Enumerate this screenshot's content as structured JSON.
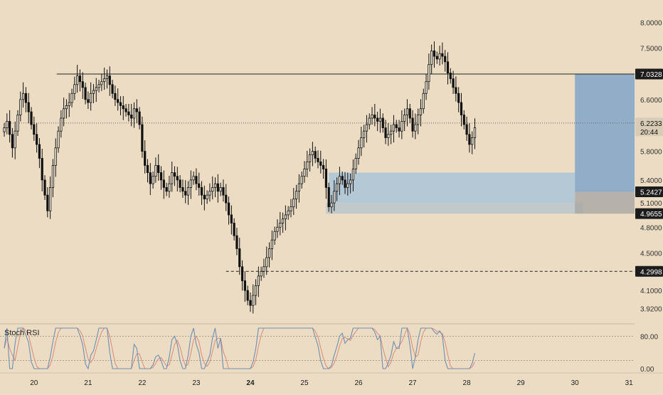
{
  "chart_data": {
    "type": "candlestick",
    "price_axis": {
      "ticks": [
        "8.0000",
        "7.5000",
        "6.6000",
        "5.8000",
        "5.4000",
        "5.1000",
        "4.8000",
        "4.5000",
        "4.1000",
        "3.9200"
      ],
      "tick_values": [
        8.0,
        7.5,
        6.6,
        5.8,
        5.4,
        5.1,
        4.8,
        4.5,
        4.1,
        3.92
      ],
      "scale": "log",
      "range": [
        3.82,
        8.25
      ]
    },
    "price_labels": [
      {
        "text": "7.0328",
        "value": 7.0328,
        "style": "dark"
      },
      {
        "text": "6.2233",
        "sub": "20:44",
        "value": 6.2233,
        "style": "last"
      },
      {
        "text": "5.2427",
        "value": 5.2427,
        "style": "dark"
      },
      {
        "text": "4.9655",
        "value": 4.9655,
        "style": "dark"
      },
      {
        "text": "4.2998",
        "value": 4.2998,
        "style": "dark"
      }
    ],
    "time_axis": {
      "labels": [
        "20",
        "21",
        "22",
        "23",
        "24",
        "25",
        "26",
        "27",
        "28",
        "29",
        "30",
        "31"
      ],
      "bold": [
        "24"
      ],
      "range": [
        19.45,
        31.05
      ]
    },
    "horizontal_lines": [
      {
        "value": 7.0328,
        "start": 20.42,
        "style": "solid"
      },
      {
        "value": 6.2233,
        "start": 19.45,
        "style": "dotted"
      },
      {
        "value": 4.2998,
        "start": 23.55,
        "style": "dashed"
      }
    ],
    "zones": [
      {
        "from": 25.45,
        "to": 30.0,
        "low": 5.1,
        "high": 5.5,
        "color": "#a6c4d9"
      },
      {
        "from": 25.4,
        "to": 30.15,
        "low": 4.9655,
        "high": 5.1,
        "color": "#b7c6cd"
      },
      {
        "from": 30.0,
        "to": 31.2,
        "low": 5.2427,
        "high": 7.0328,
        "color": "#7aa1c9"
      },
      {
        "from": 30.0,
        "to": 31.2,
        "low": 4.9655,
        "high": 5.2427,
        "color": "#a9a8a4"
      }
    ],
    "candles": {
      "start": 19.45,
      "step": 0.05,
      "close": [
        6.15,
        6.25,
        6.05,
        5.85,
        6.1,
        6.35,
        6.6,
        6.7,
        6.55,
        6.4,
        6.2,
        6.05,
        5.9,
        5.7,
        5.4,
        5.2,
        5.0,
        5.3,
        5.6,
        5.85,
        6.1,
        6.3,
        6.45,
        6.5,
        6.55,
        6.7,
        6.85,
        7.0,
        6.9,
        6.8,
        6.6,
        6.55,
        6.7,
        6.75,
        6.8,
        6.85,
        6.9,
        6.95,
        7.0,
        6.85,
        6.7,
        6.6,
        6.55,
        6.5,
        6.45,
        6.4,
        6.35,
        6.3,
        6.45,
        6.4,
        6.2,
        5.8,
        5.6,
        5.5,
        5.35,
        5.45,
        5.6,
        5.5,
        5.4,
        5.3,
        5.25,
        5.35,
        5.5,
        5.45,
        5.4,
        5.3,
        5.25,
        5.2,
        5.3,
        5.4,
        5.45,
        5.35,
        5.3,
        5.2,
        5.15,
        5.2,
        5.25,
        5.3,
        5.35,
        5.25,
        5.3,
        5.2,
        5.1,
        4.95,
        4.85,
        4.7,
        4.55,
        4.35,
        4.2,
        4.1,
        4.0,
        3.95,
        4.05,
        4.15,
        4.25,
        4.3,
        4.35,
        4.45,
        4.55,
        4.65,
        4.75,
        4.8,
        4.85,
        4.9,
        4.95,
        5.0,
        5.05,
        5.15,
        5.25,
        5.35,
        5.45,
        5.55,
        5.65,
        5.75,
        5.8,
        5.7,
        5.65,
        5.6,
        5.55,
        5.3,
        5.05,
        5.1,
        5.25,
        5.35,
        5.45,
        5.4,
        5.3,
        5.35,
        5.4,
        5.55,
        5.7,
        5.85,
        6.0,
        6.1,
        6.2,
        6.3,
        6.35,
        6.3,
        6.25,
        6.3,
        6.15,
        6.0,
        6.05,
        6.1,
        6.2,
        6.15,
        6.1,
        6.25,
        6.35,
        6.45,
        6.3,
        6.1,
        6.2,
        6.35,
        6.45,
        6.7,
        6.9,
        7.2,
        7.45,
        7.35,
        7.3,
        7.4,
        7.35,
        7.25,
        7.05,
        6.95,
        6.8,
        6.7,
        6.55,
        6.35,
        6.2,
        6.05,
        5.9,
        6.0,
        6.15
      ]
    },
    "indicator": {
      "name": "Stoch RSI",
      "ticks": [
        "80.00",
        "0.00"
      ],
      "tick_values": [
        80,
        0
      ],
      "levels": [
        80,
        20
      ]
    }
  }
}
